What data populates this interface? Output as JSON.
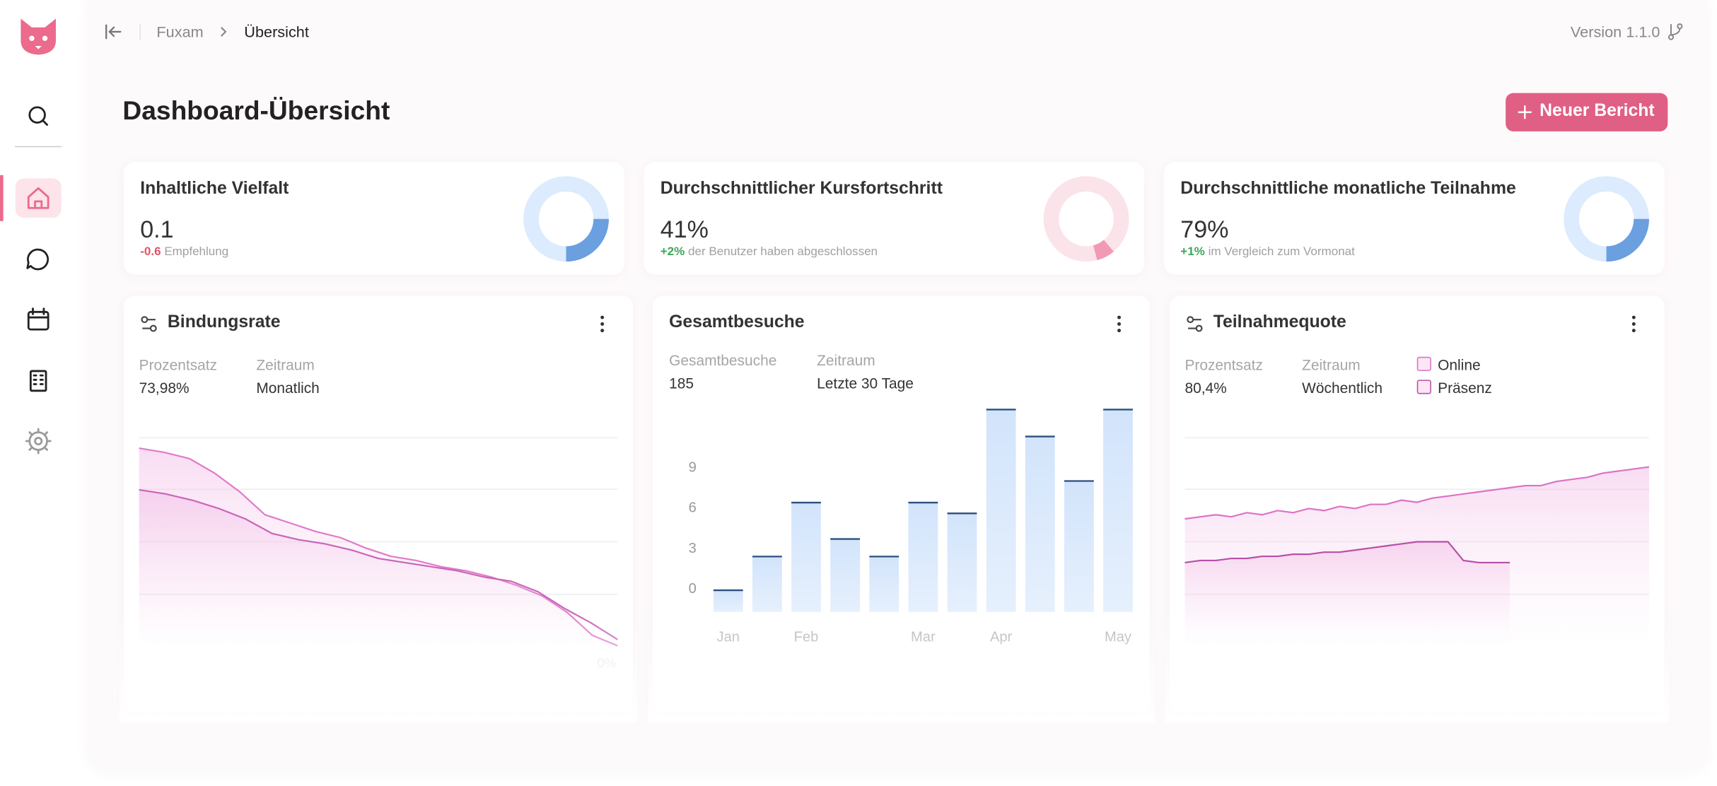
{
  "breadcrumb": {
    "parent": "Fuxam",
    "current": "Übersicht"
  },
  "version": "Version 1.1.0",
  "header": {
    "title": "Dashboard-Übersicht",
    "button": "Neuer Bericht"
  },
  "kpis": [
    {
      "title": "Inhaltliche Vielfalt",
      "value": "0.1",
      "delta": "-0.6",
      "note": "Empfehlung",
      "gauge": 25,
      "color": "#6a9fe0",
      "track": "#dcebfd",
      "delta_color": "#e0556a"
    },
    {
      "title": "Durchschnittlicher Kursfortschritt",
      "value": "41%",
      "delta": "+2%",
      "note": "der Benutzer haben abgeschlossen",
      "gauge": 7,
      "color": "#f29ab5",
      "track": "#fbe3ea",
      "delta_color": "#3da65a"
    },
    {
      "title": "Durchschnittliche monatliche Teilnahme",
      "value": "79%",
      "delta": "+1%",
      "note": "im Vergleich zum Vormonat",
      "gauge": 25,
      "color": "#6a9fe0",
      "track": "#dcebfd",
      "delta_color": "#3da65a"
    }
  ],
  "charts": [
    {
      "type": "line",
      "title": "Bindungsrate",
      "meta": [
        {
          "label": "Prozentsatz",
          "value": "73,98%"
        },
        {
          "label": "Zeitraum",
          "value": "Monatlich"
        }
      ],
      "ylim": [
        0,
        100
      ],
      "yticks": [
        {
          "value": 0,
          "label": "0%"
        }
      ],
      "series": [
        {
          "color": "#e07ac8",
          "values": [
            95,
            93,
            90,
            83,
            74,
            63,
            59,
            55,
            52,
            47,
            43,
            41,
            38,
            36,
            33,
            29,
            24,
            16,
            5,
            0
          ]
        },
        {
          "color": "#c865b8",
          "values": [
            75,
            73,
            70,
            66,
            61,
            54,
            51,
            49,
            46,
            42,
            40,
            38,
            36,
            33,
            31,
            26,
            18,
            11,
            3
          ]
        }
      ]
    },
    {
      "type": "bar",
      "title": "Gesamtbesuche",
      "meta": [
        {
          "label": "Gesamtbesuche",
          "value": "185"
        },
        {
          "label": "Zeitraum",
          "value": "Letzte 30 Tage"
        }
      ],
      "categories": [
        "Jan",
        null,
        "Feb",
        null,
        null,
        "Mar",
        null,
        "Apr",
        null,
        null,
        "May"
      ],
      "values": [
        -0.2,
        2.3,
        6.3,
        3.6,
        2.3,
        6.3,
        5.5,
        13.2,
        11.2,
        7.9,
        13.2
      ],
      "ylim": [
        -1.8,
        15
      ],
      "yticks": [
        0,
        3,
        6,
        9
      ],
      "color": "#d2e4fb",
      "edge_color": "#2b4f7c"
    },
    {
      "type": "line",
      "title": "Teilnahmequote",
      "meta": [
        {
          "label": "Prozentsatz",
          "value": "80,4%"
        },
        {
          "label": "Zeitraum",
          "value": "Wöchentlich"
        }
      ],
      "ylim": [
        0,
        100
      ],
      "legend": true,
      "series": [
        {
          "name": "Online",
          "color": "#dc72c4",
          "values": [
            61,
            62,
            63,
            62,
            64,
            63,
            65,
            64,
            66,
            65,
            67,
            66,
            68,
            68,
            70,
            69,
            71,
            72,
            73,
            74,
            75,
            76,
            77,
            77,
            79,
            80,
            81,
            83,
            84,
            85,
            86
          ]
        },
        {
          "name": "Präsenz",
          "color": "#b84fa8",
          "values": [
            40,
            41,
            41,
            42,
            42,
            43,
            43,
            44,
            44,
            45,
            45,
            46,
            47,
            48,
            49,
            50,
            50,
            50,
            41,
            40,
            40,
            40,
            null,
            null,
            null,
            null,
            null,
            null,
            null,
            null,
            null
          ]
        }
      ]
    }
  ]
}
